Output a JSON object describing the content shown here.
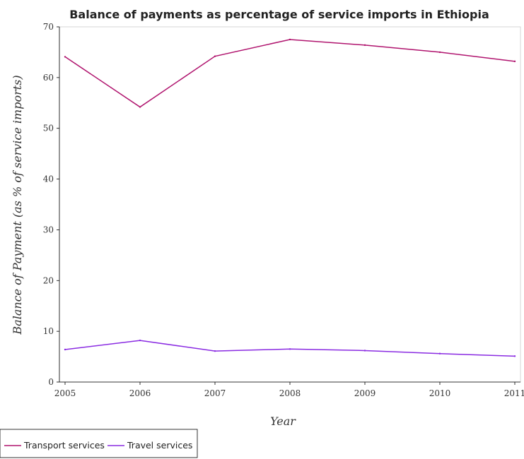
{
  "chart_data": {
    "type": "line",
    "title": "Balance of payments as percentage of service imports in Ethiopia",
    "xlabel": "Year",
    "ylabel": "Balance of Payment (as % of service imports)",
    "x": [
      "2005",
      "2006",
      "2007",
      "2008",
      "2009",
      "2010",
      "2011"
    ],
    "yticks": [
      "0",
      "10",
      "20",
      "30",
      "40",
      "50",
      "60",
      "70"
    ],
    "ylim": [
      0,
      70
    ],
    "grid": false,
    "legend_position": "bottom-left",
    "series": [
      {
        "name": "Transport services",
        "color": "#b0146e",
        "values": [
          64.1,
          54.2,
          64.2,
          67.5,
          66.4,
          65.0,
          63.2
        ]
      },
      {
        "name": "Travel services",
        "color": "#8a2be2",
        "values": [
          6.4,
          8.2,
          6.1,
          6.5,
          6.2,
          5.6,
          5.1
        ]
      }
    ]
  }
}
